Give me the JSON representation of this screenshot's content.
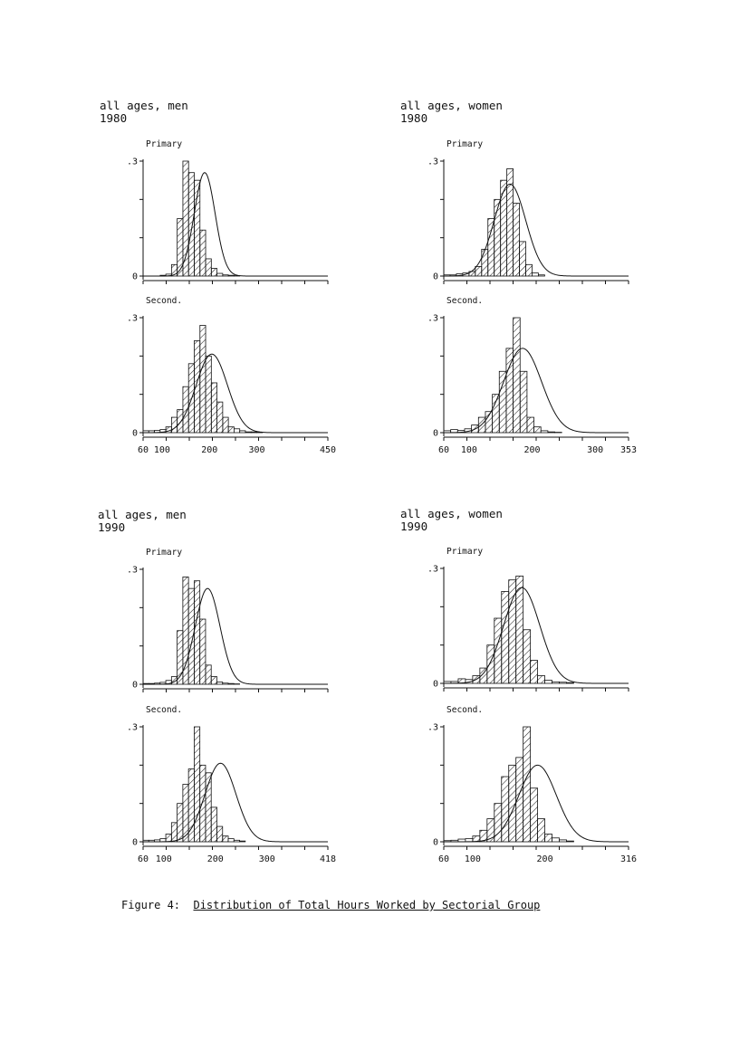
{
  "figure": {
    "label": "Figure 4:",
    "title": "Distribution of Total Hours Worked by Sectorial Group"
  },
  "panels": [
    {
      "group": "all ages, men",
      "year": "1980"
    },
    {
      "group": "all ages, women",
      "year": "1980"
    },
    {
      "group": "all ages, men",
      "year": "1990"
    },
    {
      "group": "all ages, women",
      "year": "1990"
    }
  ],
  "chart_data": [
    {
      "type": "bar",
      "panel": 0,
      "title": "Primary",
      "xlim": [
        60,
        450
      ],
      "ylim": [
        0,
        0.3
      ],
      "yticks": [
        "0",
        ".3"
      ],
      "xticks": [],
      "bin_width": 12,
      "bin_start": 60,
      "values": [
        0,
        0,
        0,
        0.002,
        0.005,
        0.03,
        0.15,
        0.3,
        0.27,
        0.25,
        0.12,
        0.045,
        0.02,
        0.007,
        0.003,
        0.002,
        0.001,
        0,
        0,
        0,
        0,
        0,
        0,
        0,
        0,
        0,
        0,
        0,
        0,
        0,
        0,
        0,
        0
      ],
      "curve": {
        "mean": 190,
        "sd": 22,
        "peak": 0.27
      }
    },
    {
      "type": "bar",
      "panel": 0,
      "title": "Second.",
      "xlim": [
        60,
        450
      ],
      "ylim": [
        0,
        0.3
      ],
      "yticks": [
        "0",
        ".3"
      ],
      "xticks": [
        "60",
        "100",
        "200",
        "300",
        "450"
      ],
      "bin_width": 12,
      "bin_start": 60,
      "values": [
        0.005,
        0.005,
        0.006,
        0.008,
        0.015,
        0.04,
        0.06,
        0.12,
        0.18,
        0.24,
        0.28,
        0.2,
        0.13,
        0.08,
        0.04,
        0.015,
        0.01,
        0.005,
        0.002,
        0.002,
        0.001,
        0,
        0,
        0,
        0,
        0,
        0,
        0,
        0,
        0,
        0,
        0,
        0
      ],
      "curve": {
        "mean": 205,
        "sd": 33,
        "peak": 0.205
      }
    },
    {
      "type": "bar",
      "panel": 1,
      "title": "Primary",
      "xlim": [
        60,
        353
      ],
      "ylim": [
        0,
        0.3
      ],
      "yticks": [
        "0",
        ".3"
      ],
      "xticks": [],
      "bin_width": 10,
      "bin_start": 60,
      "values": [
        0.003,
        0.003,
        0.006,
        0.008,
        0.012,
        0.025,
        0.07,
        0.15,
        0.2,
        0.25,
        0.28,
        0.19,
        0.09,
        0.03,
        0.008,
        0.003,
        0,
        0,
        0,
        0,
        0,
        0,
        0,
        0,
        0,
        0,
        0,
        0,
        0
      ],
      "curve": {
        "mean": 165,
        "sd": 25,
        "peak": 0.24
      }
    },
    {
      "type": "bar",
      "panel": 1,
      "title": "Second.",
      "xlim": [
        60,
        353
      ],
      "ylim": [
        0,
        0.3
      ],
      "yticks": [
        "0",
        ".3"
      ],
      "xticks": [
        "60",
        "100",
        "200",
        "300",
        "353"
      ],
      "bin_width": 11,
      "bin_start": 60,
      "values": [
        0.005,
        0.008,
        0.006,
        0.01,
        0.02,
        0.04,
        0.055,
        0.1,
        0.16,
        0.22,
        0.3,
        0.16,
        0.04,
        0.015,
        0.005,
        0.002,
        0.001,
        0,
        0,
        0,
        0,
        0,
        0,
        0,
        0,
        0,
        0
      ],
      "curve": {
        "mean": 185,
        "sd": 30,
        "peak": 0.22
      }
    },
    {
      "type": "bar",
      "panel": 2,
      "title": "Primary",
      "xlim": [
        60,
        418
      ],
      "ylim": [
        0,
        0.3
      ],
      "yticks": [
        "0",
        ".3"
      ],
      "xticks": [],
      "bin_width": 11,
      "bin_start": 60,
      "values": [
        0.002,
        0.002,
        0.003,
        0.005,
        0.01,
        0.02,
        0.14,
        0.28,
        0.25,
        0.27,
        0.17,
        0.05,
        0.02,
        0.006,
        0.003,
        0.002,
        0.001,
        0,
        0,
        0,
        0,
        0,
        0,
        0,
        0,
        0,
        0,
        0,
        0,
        0,
        0,
        0
      ],
      "curve": {
        "mean": 185,
        "sd": 24,
        "peak": 0.25
      }
    },
    {
      "type": "bar",
      "panel": 2,
      "title": "Second.",
      "xlim": [
        60,
        418
      ],
      "ylim": [
        0,
        0.3
      ],
      "yticks": [
        "0",
        ".3"
      ],
      "xticks": [
        "60",
        "100",
        "200",
        "300",
        "418"
      ],
      "bin_width": 11,
      "bin_start": 60,
      "values": [
        0.004,
        0.004,
        0.005,
        0.008,
        0.02,
        0.05,
        0.1,
        0.15,
        0.19,
        0.3,
        0.2,
        0.18,
        0.09,
        0.04,
        0.015,
        0.008,
        0.004,
        0.002,
        0,
        0,
        0,
        0,
        0,
        0,
        0,
        0,
        0,
        0,
        0,
        0,
        0,
        0
      ],
      "curve": {
        "mean": 210,
        "sd": 30,
        "peak": 0.205
      }
    },
    {
      "type": "bar",
      "panel": 3,
      "title": "Primary",
      "xlim": [
        60,
        316
      ],
      "ylim": [
        0,
        0.3
      ],
      "yticks": [
        "0",
        ".3"
      ],
      "xticks": [],
      "bin_width": 10,
      "bin_start": 60,
      "values": [
        0.005,
        0.005,
        0.012,
        0.01,
        0.02,
        0.04,
        0.1,
        0.17,
        0.24,
        0.27,
        0.28,
        0.14,
        0.06,
        0.02,
        0.008,
        0.004,
        0.003,
        0.002,
        0,
        0,
        0,
        0,
        0,
        0,
        0,
        0
      ],
      "curve": {
        "mean": 168,
        "sd": 25,
        "peak": 0.25
      }
    },
    {
      "type": "bar",
      "panel": 3,
      "title": "Second.",
      "xlim": [
        60,
        316
      ],
      "ylim": [
        0,
        0.3
      ],
      "yticks": [
        "0",
        ".3"
      ],
      "xticks": [
        "60",
        "100",
        "200",
        "316"
      ],
      "bin_width": 10,
      "bin_start": 60,
      "values": [
        0.003,
        0.004,
        0.007,
        0.008,
        0.015,
        0.03,
        0.06,
        0.1,
        0.17,
        0.2,
        0.22,
        0.3,
        0.14,
        0.06,
        0.02,
        0.01,
        0.005,
        0.002,
        0,
        0,
        0,
        0,
        0,
        0,
        0,
        0
      ],
      "curve": {
        "mean": 190,
        "sd": 26,
        "peak": 0.2
      }
    }
  ]
}
